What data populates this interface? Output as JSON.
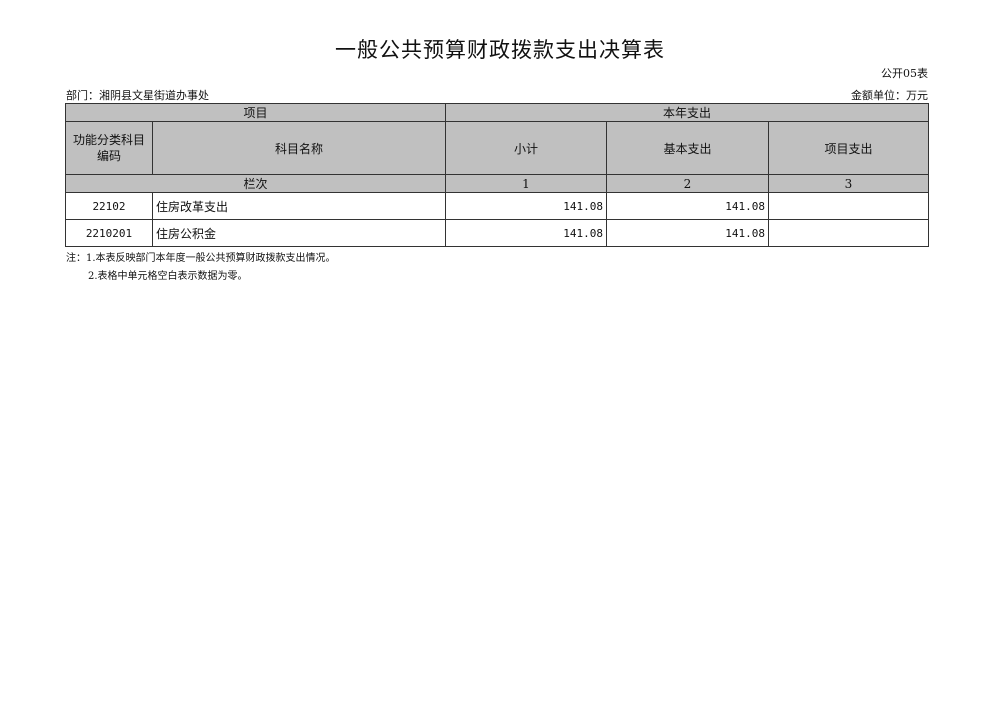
{
  "title": "一般公共预算财政拨款支出决算表",
  "table_code": "公开05表",
  "department": "部门：湘阴县文星街道办事处",
  "unit": "金额单位：万元",
  "header": {
    "project": "项目",
    "current_year": "本年支出",
    "code": "功能分类科目编码",
    "name": "科目名称",
    "subtotal": "小计",
    "basic": "基本支出",
    "project_exp": "项目支出",
    "column_index": "栏次",
    "col1": "1",
    "col2": "2",
    "col3": "3"
  },
  "rows": [
    {
      "code": "22102",
      "name": "住房改革支出",
      "subtotal": "141.08",
      "basic": "141.08",
      "project": ""
    },
    {
      "code": "2210201",
      "name": "住房公积金",
      "subtotal": "141.08",
      "basic": "141.08",
      "project": ""
    }
  ],
  "notes": [
    "注：1.本表反映部门本年度一般公共预算财政拨款支出情况。",
    "2.表格中单元格空白表示数据为零。"
  ]
}
